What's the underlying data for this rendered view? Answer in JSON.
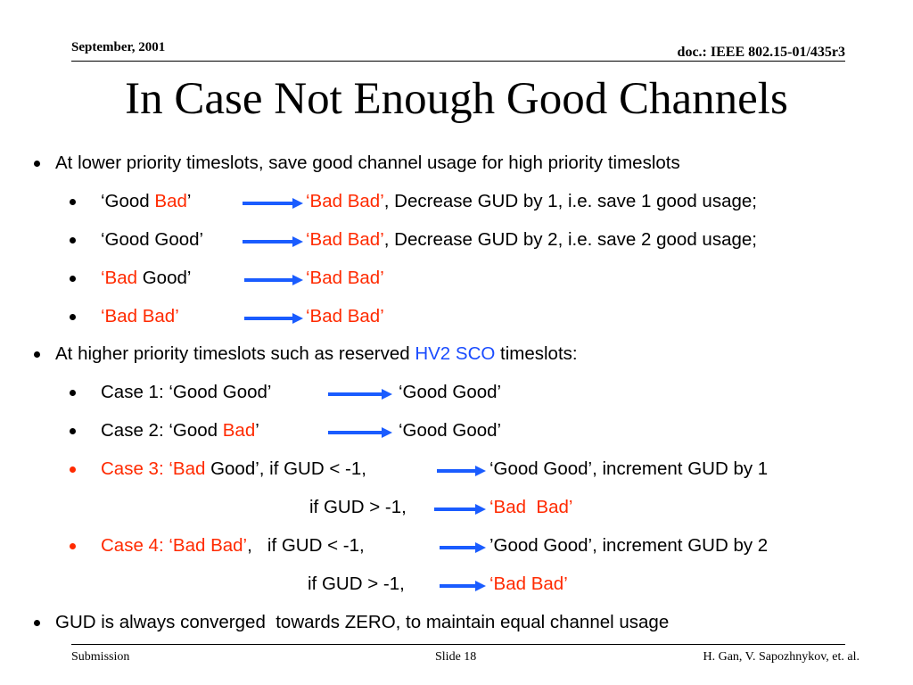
{
  "header": {
    "date": "September, 2001",
    "doc": "doc.: IEEE 802.15-01/435r3"
  },
  "title": "In Case Not Enough Good Channels",
  "body": {
    "lines": [
      {
        "left": [
          {
            "text": "At lower priority timeslots, save good channel usage for high priority timeslots",
            "color": "#000000"
          }
        ]
      },
      {
        "left": [
          {
            "text": "‘Good ",
            "color": "#000000"
          },
          {
            "text": "Bad",
            "color": "#ff2a00"
          },
          {
            "text": "’",
            "color": "#000000"
          }
        ],
        "right": [
          {
            "text": "‘Bad Bad’",
            "color": "#ff2a00"
          },
          {
            "text": ", Decrease GUD by 1, i.e. save 1 good usage;",
            "color": "#000000"
          }
        ]
      },
      {
        "left": [
          {
            "text": "‘Good Good’",
            "color": "#000000"
          }
        ],
        "right": [
          {
            "text": "‘Bad Bad’",
            "color": "#ff2a00"
          },
          {
            "text": ", Decrease GUD by 2, i.e. save 2 good usage;",
            "color": "#000000"
          }
        ]
      },
      {
        "left": [
          {
            "text": "‘Bad",
            "color": "#ff2a00"
          },
          {
            "text": " Good’",
            "color": "#000000"
          }
        ],
        "right": [
          {
            "text": "‘Bad Bad’",
            "color": "#ff2a00"
          }
        ]
      },
      {
        "left": [
          {
            "text": "‘Bad Bad’",
            "color": "#ff2a00"
          }
        ],
        "right": [
          {
            "text": "‘Bad Bad’",
            "color": "#ff2a00"
          }
        ]
      },
      {
        "left": [
          {
            "text": "At higher priority timeslots such as reserved ",
            "color": "#000000"
          },
          {
            "text": "HV2 SCO",
            "color": "#1a4cff"
          },
          {
            "text": " timeslots:",
            "color": "#000000"
          }
        ]
      },
      {
        "left": [
          {
            "text": "Case 1: ‘Good Good’",
            "color": "#000000"
          }
        ],
        "right": [
          {
            "text": "‘Good Good’",
            "color": "#000000"
          }
        ]
      },
      {
        "left": [
          {
            "text": "Case 2: ‘Good ",
            "color": "#000000"
          },
          {
            "text": "Bad",
            "color": "#ff2a00"
          },
          {
            "text": "’",
            "color": "#000000"
          }
        ],
        "right": [
          {
            "text": "‘Good Good’",
            "color": "#000000"
          }
        ]
      },
      {
        "left": [
          {
            "text": "Case 3: ‘Bad",
            "color": "#ff2a00"
          },
          {
            "text": " Good’, if GUD < -1,",
            "color": "#000000"
          }
        ],
        "right": [
          {
            "text": "‘Good Good’, increment GUD by 1",
            "color": "#000000"
          }
        ]
      },
      {
        "left": [
          {
            "text": "if GUD > -1,",
            "color": "#000000"
          }
        ],
        "right": [
          {
            "text": "‘Bad  Bad’",
            "color": "#ff2a00"
          }
        ]
      },
      {
        "left": [
          {
            "text": "Case 4: ‘Bad Bad’",
            "color": "#ff2a00"
          },
          {
            "text": ",   if GUD < -1,",
            "color": "#000000"
          }
        ],
        "right": [
          {
            "text": "’Good Good’, increment GUD by 2",
            "color": "#000000"
          }
        ]
      },
      {
        "left": [
          {
            "text": "if GUD > -1,",
            "color": "#000000"
          }
        ],
        "right": [
          {
            "text": "‘Bad Bad’",
            "color": "#ff2a00"
          }
        ]
      },
      {
        "left": [
          {
            "text": "GUD is always converged  towards ZERO, to maintain equal channel usage",
            "color": "#000000"
          }
        ]
      }
    ]
  },
  "footer": {
    "left": "Submission",
    "center": "Slide 18",
    "right": "H. Gan, V. Sapozhnykov, et. al."
  }
}
